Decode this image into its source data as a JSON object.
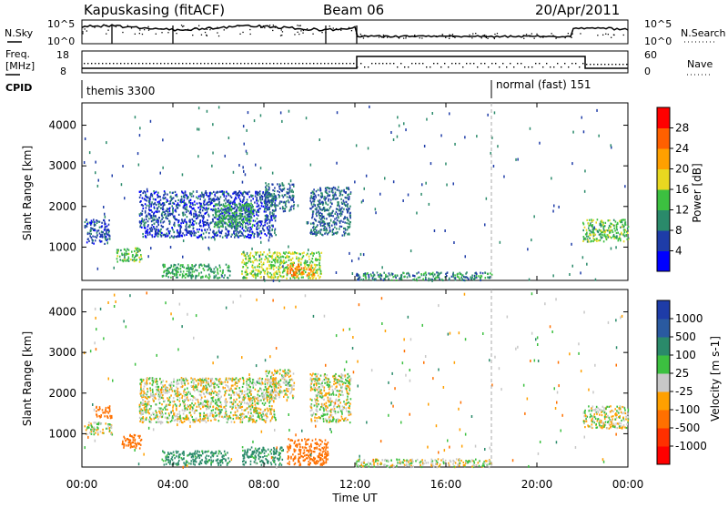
{
  "header": {
    "station": "Kapuskasing (fitACF)",
    "beam": "Beam 06",
    "date": "20/Apr/2011"
  },
  "noise_panel": {
    "left_label": "N.Sky",
    "right_label": "N.Search",
    "left_ticks": [
      "10^5",
      "10^0"
    ],
    "right_ticks": [
      "10^5",
      "10^0"
    ]
  },
  "freq_panel": {
    "left_label_1": "Freq.",
    "left_label_2": "[MHz]",
    "right_label": "Nave",
    "left_ticks": [
      "18",
      "8"
    ],
    "right_ticks": [
      "60",
      "0"
    ]
  },
  "cpid_panel": {
    "label": "CPID",
    "segments": [
      {
        "name": "themis 3300",
        "start_hour": 0,
        "end_hour": 18
      },
      {
        "name": "normal (fast) 151",
        "start_hour": 18,
        "end_hour": 24
      }
    ]
  },
  "time_axis": {
    "xlabel": "Time UT",
    "tick_labels": [
      "00:00",
      "04:00",
      "08:00",
      "12:00",
      "16:00",
      "20:00",
      "00:00"
    ]
  },
  "power_colorbar": {
    "label": "Power [dB]",
    "ticks": [
      "28",
      "24",
      "20",
      "16",
      "12",
      "8",
      "4"
    ],
    "colors": [
      "#0000ff",
      "#1e3ca8",
      "#2a8a6a",
      "#3cc040",
      "#e8d820",
      "#ffa000",
      "#ff6000",
      "#ff0000"
    ]
  },
  "velocity_colorbar": {
    "label": "Velocity [m s-1]",
    "ticks": [
      "1000",
      "500",
      "100",
      "25",
      "-25",
      "-100",
      "-500",
      "-1000"
    ],
    "colors": [
      "#1e3ca8",
      "#2a5aa0",
      "#2a8a6a",
      "#3cc040",
      "#c8c8c8",
      "#ffa000",
      "#ff7000",
      "#ff3000",
      "#ff0000"
    ]
  },
  "chart_data": [
    {
      "type": "heatmap",
      "title": "Power",
      "ylabel": "Slant Range [km]",
      "xlabel": "",
      "xlim": [
        0,
        24
      ],
      "ylim": [
        180,
        4550
      ],
      "yticks": [
        1000,
        2000,
        3000,
        4000
      ],
      "zlabel": "Power [dB]",
      "zlim": [
        0,
        32
      ],
      "patches": [
        {
          "t0": 0.1,
          "t1": 1.2,
          "r0": 1100,
          "r1": 1700,
          "value": 6
        },
        {
          "t0": 1.5,
          "t1": 2.6,
          "r0": 650,
          "r1": 1000,
          "value": 14
        },
        {
          "t0": 2.5,
          "t1": 8.5,
          "r0": 1250,
          "r1": 2400,
          "value": 6
        },
        {
          "t0": 5.8,
          "t1": 7.5,
          "r0": 1500,
          "r1": 2100,
          "value": 12
        },
        {
          "t0": 8.0,
          "t1": 9.3,
          "r0": 1900,
          "r1": 2600,
          "value": 8
        },
        {
          "t0": 10.0,
          "t1": 11.8,
          "r0": 1300,
          "r1": 2500,
          "value": 8
        },
        {
          "t0": 3.5,
          "t1": 6.5,
          "r0": 250,
          "r1": 600,
          "value": 12
        },
        {
          "t0": 7.0,
          "t1": 10.5,
          "r0": 250,
          "r1": 900,
          "value": 16
        },
        {
          "t0": 9.0,
          "t1": 10.2,
          "r0": 300,
          "r1": 600,
          "value": 24
        },
        {
          "t0": 12.0,
          "t1": 18.0,
          "r0": 200,
          "r1": 400,
          "value": 10
        },
        {
          "t0": 22.0,
          "t1": 24.0,
          "r0": 1150,
          "r1": 1700,
          "value": 14
        }
      ]
    },
    {
      "type": "heatmap",
      "title": "Velocity",
      "ylabel": "Slant Range [km]",
      "xlabel": "Time UT",
      "xlim": [
        0,
        24
      ],
      "ylim": [
        180,
        4550
      ],
      "yticks": [
        1000,
        2000,
        3000,
        4000
      ],
      "zlabel": "Velocity [m s-1]",
      "patches": [
        {
          "t0": 0.1,
          "t1": 1.3,
          "r0": 1000,
          "r1": 1300,
          "value": 0
        },
        {
          "t0": 0.6,
          "t1": 1.3,
          "r0": 1400,
          "r1": 1700,
          "value": -200
        },
        {
          "t0": 1.7,
          "t1": 2.6,
          "r0": 650,
          "r1": 1000,
          "value": -400
        },
        {
          "t0": 2.5,
          "t1": 8.5,
          "r0": 1300,
          "r1": 2400,
          "value": 0
        },
        {
          "t0": 8.0,
          "t1": 9.3,
          "r0": 1900,
          "r1": 2600,
          "value": 0
        },
        {
          "t0": 10.0,
          "t1": 11.8,
          "r0": 1300,
          "r1": 2500,
          "value": 0
        },
        {
          "t0": 3.5,
          "t1": 6.5,
          "r0": 250,
          "r1": 600,
          "value": 150
        },
        {
          "t0": 7.0,
          "t1": 8.8,
          "r0": 250,
          "r1": 700,
          "value": 150
        },
        {
          "t0": 9.0,
          "t1": 10.8,
          "r0": 250,
          "r1": 900,
          "value": -200
        },
        {
          "t0": 12.0,
          "t1": 18.0,
          "r0": 200,
          "r1": 400,
          "value": 0
        },
        {
          "t0": 22.0,
          "t1": 24.0,
          "r0": 1150,
          "r1": 1700,
          "value": 0
        }
      ]
    }
  ]
}
